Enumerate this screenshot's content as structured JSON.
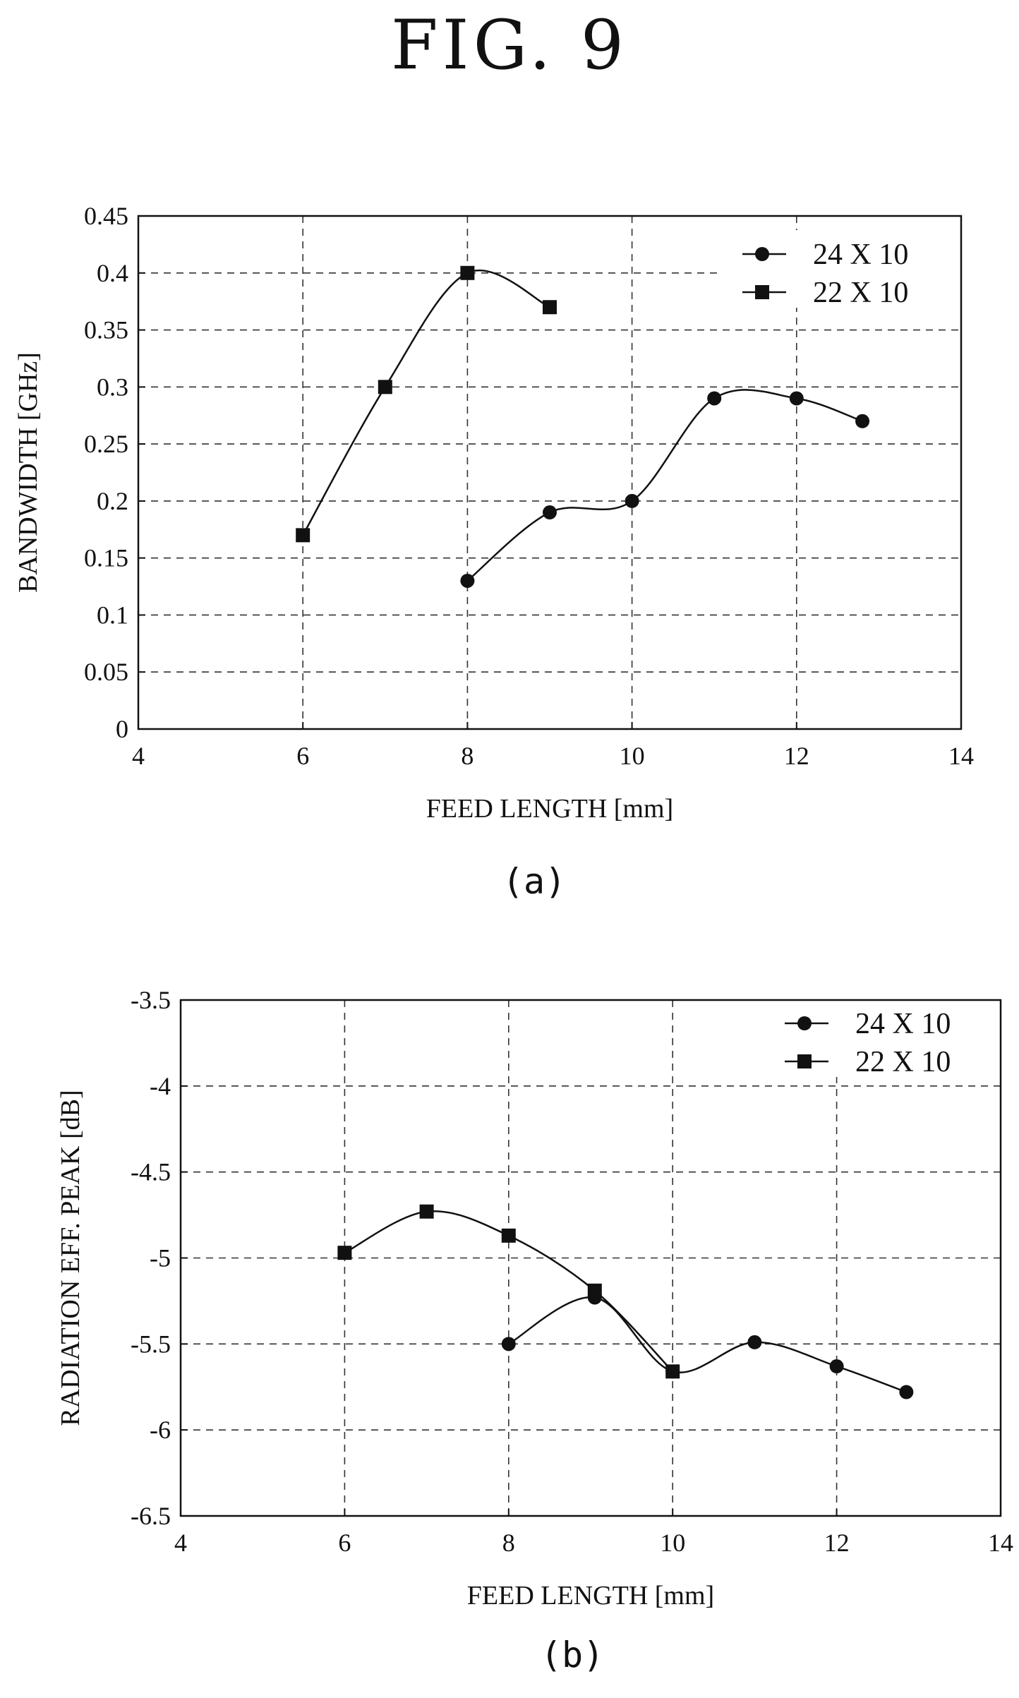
{
  "figure_title": "FIG. 9",
  "captions": [
    "(a)",
    "(b)"
  ],
  "chart_data": [
    {
      "type": "line",
      "xlabel": "FEED LENGTH [mm]",
      "ylabel": "BANDWIDTH [GHz]",
      "xlim": [
        4,
        14
      ],
      "ylim": [
        0,
        0.45
      ],
      "x_ticks": [
        4,
        6,
        8,
        10,
        12,
        14
      ],
      "x_tick_labels": [
        "4",
        "6",
        "8",
        "10",
        "12",
        "14"
      ],
      "y_ticks": [
        0,
        0.05,
        0.1,
        0.15,
        0.2,
        0.25,
        0.3,
        0.35,
        0.4,
        0.45
      ],
      "y_tick_labels": [
        "0",
        "0.05",
        "0.1",
        "0.15",
        "0.2",
        "0.25",
        "0.3",
        "0.35",
        "0.4",
        "0.45"
      ],
      "grid": true,
      "legend_position": "top-right",
      "series": [
        {
          "name": "24 X 10",
          "marker": "circle",
          "x": [
            8,
            9,
            10,
            11,
            12,
            12.8
          ],
          "y": [
            0.13,
            0.19,
            0.2,
            0.29,
            0.29,
            0.27
          ]
        },
        {
          "name": "22 X 10",
          "marker": "square",
          "x": [
            6,
            7,
            8,
            9
          ],
          "y": [
            0.17,
            0.3,
            0.4,
            0.37
          ]
        }
      ]
    },
    {
      "type": "line",
      "xlabel": "FEED LENGTH [mm]",
      "ylabel": "RADIATION EFF. PEAK [dB]",
      "xlim": [
        4,
        14
      ],
      "ylim": [
        -6.5,
        -3.5
      ],
      "x_ticks": [
        4,
        6,
        8,
        10,
        12,
        14
      ],
      "x_tick_labels": [
        "4",
        "6",
        "8",
        "10",
        "12",
        "14"
      ],
      "y_ticks": [
        -6.5,
        -6,
        -5.5,
        -5,
        -4.5,
        -4,
        -3.5
      ],
      "y_tick_labels": [
        "-6.5",
        "-6",
        "-5.5",
        "-5",
        "-4.5",
        "-4",
        "-3.5"
      ],
      "grid": true,
      "legend_position": "top-right",
      "series": [
        {
          "name": "24 X 10",
          "marker": "circle",
          "x": [
            8,
            9.05,
            10,
            11,
            12,
            12.85
          ],
          "y": [
            -5.5,
            -5.23,
            -5.66,
            -5.49,
            -5.63,
            -5.78
          ]
        },
        {
          "name": "22 X 10",
          "marker": "square",
          "x": [
            6,
            7,
            8,
            9.05,
            10
          ],
          "y": [
            -4.97,
            -4.73,
            -4.87,
            -5.19,
            -5.66
          ]
        }
      ]
    }
  ]
}
